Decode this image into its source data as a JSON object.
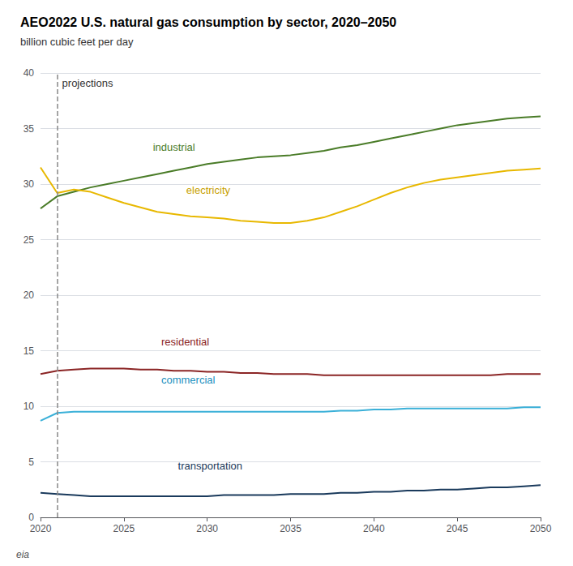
{
  "chart_data": {
    "type": "line",
    "title": "AEO2022 U.S. natural gas consumption by sector, 2020–2050",
    "subtitle": "billion cubic feet per day",
    "x": [
      2020,
      2021,
      2022,
      2023,
      2024,
      2025,
      2026,
      2027,
      2028,
      2029,
      2030,
      2031,
      2032,
      2033,
      2034,
      2035,
      2036,
      2037,
      2038,
      2039,
      2040,
      2041,
      2042,
      2043,
      2044,
      2045,
      2046,
      2047,
      2048,
      2049,
      2050
    ],
    "series": [
      {
        "name": "industrial",
        "color": "#4a7c28",
        "values": [
          27.8,
          28.9,
          29.3,
          29.7,
          30.0,
          30.3,
          30.6,
          30.9,
          31.2,
          31.5,
          31.8,
          32.0,
          32.2,
          32.4,
          32.5,
          32.6,
          32.8,
          33.0,
          33.3,
          33.5,
          33.8,
          34.1,
          34.4,
          34.7,
          35.0,
          35.3,
          35.5,
          35.7,
          35.9,
          36.0,
          36.1
        ]
      },
      {
        "name": "electricity",
        "color": "#e8b800",
        "values": [
          31.5,
          29.2,
          29.5,
          29.3,
          28.8,
          28.3,
          27.9,
          27.5,
          27.3,
          27.1,
          27.0,
          26.9,
          26.7,
          26.6,
          26.5,
          26.5,
          26.7,
          27.0,
          27.5,
          28.0,
          28.6,
          29.2,
          29.7,
          30.1,
          30.4,
          30.6,
          30.8,
          31.0,
          31.2,
          31.3,
          31.4
        ]
      },
      {
        "name": "residential",
        "color": "#8b2525",
        "values": [
          12.9,
          13.2,
          13.3,
          13.4,
          13.4,
          13.4,
          13.3,
          13.3,
          13.2,
          13.2,
          13.1,
          13.1,
          13.0,
          13.0,
          12.9,
          12.9,
          12.9,
          12.8,
          12.8,
          12.8,
          12.8,
          12.8,
          12.8,
          12.8,
          12.8,
          12.8,
          12.8,
          12.8,
          12.9,
          12.9,
          12.9
        ]
      },
      {
        "name": "commercial",
        "color": "#3ab0d8",
        "values": [
          8.7,
          9.4,
          9.5,
          9.5,
          9.5,
          9.5,
          9.5,
          9.5,
          9.5,
          9.5,
          9.5,
          9.5,
          9.5,
          9.5,
          9.5,
          9.5,
          9.5,
          9.5,
          9.6,
          9.6,
          9.7,
          9.7,
          9.8,
          9.8,
          9.8,
          9.8,
          9.8,
          9.8,
          9.8,
          9.9,
          9.9
        ]
      },
      {
        "name": "transportation",
        "color": "#1a3a5c",
        "values": [
          2.2,
          2.1,
          2.0,
          1.9,
          1.9,
          1.9,
          1.9,
          1.9,
          1.9,
          1.9,
          1.9,
          2.0,
          2.0,
          2.0,
          2.0,
          2.1,
          2.1,
          2.1,
          2.2,
          2.2,
          2.3,
          2.3,
          2.4,
          2.4,
          2.5,
          2.5,
          2.6,
          2.7,
          2.7,
          2.8,
          2.9
        ]
      }
    ],
    "xlim": [
      2020,
      2050
    ],
    "ylim": [
      0,
      40
    ],
    "xticks": [
      2020,
      2025,
      2030,
      2035,
      2040,
      2045,
      2050
    ],
    "yticks": [
      0,
      5,
      10,
      15,
      20,
      25,
      30,
      35,
      40
    ],
    "grid": true,
    "annotations": [
      {
        "text": "projections",
        "x": 2021,
        "line_style": "dashed"
      },
      {
        "text": "industrial",
        "x": 2026.5,
        "y": 32.5,
        "color": "#4a7c28"
      },
      {
        "text": "electricity",
        "x": 2028.5,
        "y": 28.6,
        "color": "#c8a000"
      },
      {
        "text": "residential",
        "x": 2027.0,
        "y": 15.0,
        "color": "#8b2525"
      },
      {
        "text": "commercial",
        "x": 2027.0,
        "y": 11.5,
        "color": "#1a90c0"
      },
      {
        "text": "transportation",
        "x": 2028.0,
        "y": 3.8,
        "color": "#1a3a5c"
      },
      {
        "text": "eia"
      }
    ]
  }
}
